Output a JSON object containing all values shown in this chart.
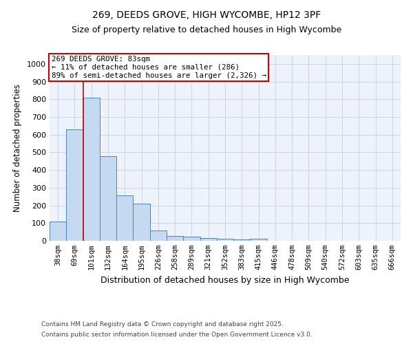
{
  "title1": "269, DEEDS GROVE, HIGH WYCOMBE, HP12 3PF",
  "title2": "Size of property relative to detached houses in High Wycombe",
  "xlabel": "Distribution of detached houses by size in High Wycombe",
  "ylabel": "Number of detached properties",
  "categories": [
    "38sqm",
    "69sqm",
    "101sqm",
    "132sqm",
    "164sqm",
    "195sqm",
    "226sqm",
    "258sqm",
    "289sqm",
    "321sqm",
    "352sqm",
    "383sqm",
    "415sqm",
    "446sqm",
    "478sqm",
    "509sqm",
    "540sqm",
    "572sqm",
    "603sqm",
    "635sqm",
    "666sqm"
  ],
  "bar_values": [
    110,
    630,
    810,
    480,
    255,
    210,
    60,
    28,
    22,
    15,
    10,
    8,
    10,
    0,
    0,
    0,
    0,
    0,
    0,
    0,
    0
  ],
  "bar_color": "#c5d9f1",
  "bar_edge_color": "#4f81bd",
  "red_line_x": 1.5,
  "annotation_title": "269 DEEDS GROVE: 83sqm",
  "annotation_line2": "← 11% of detached houses are smaller (286)",
  "annotation_line3": "89% of semi-detached houses are larger (2,326) →",
  "annotation_box_color": "#cc0000",
  "ylim": [
    0,
    1050
  ],
  "yticks": [
    0,
    100,
    200,
    300,
    400,
    500,
    600,
    700,
    800,
    900,
    1000
  ],
  "footnote1": "Contains HM Land Registry data © Crown copyright and database right 2025.",
  "footnote2": "Contains public sector information licensed under the Open Government Licence v3.0.",
  "bg_color": "#eef2fa",
  "grid_color": "#c8d4e8",
  "title1_fontsize": 10,
  "title2_fontsize": 9
}
